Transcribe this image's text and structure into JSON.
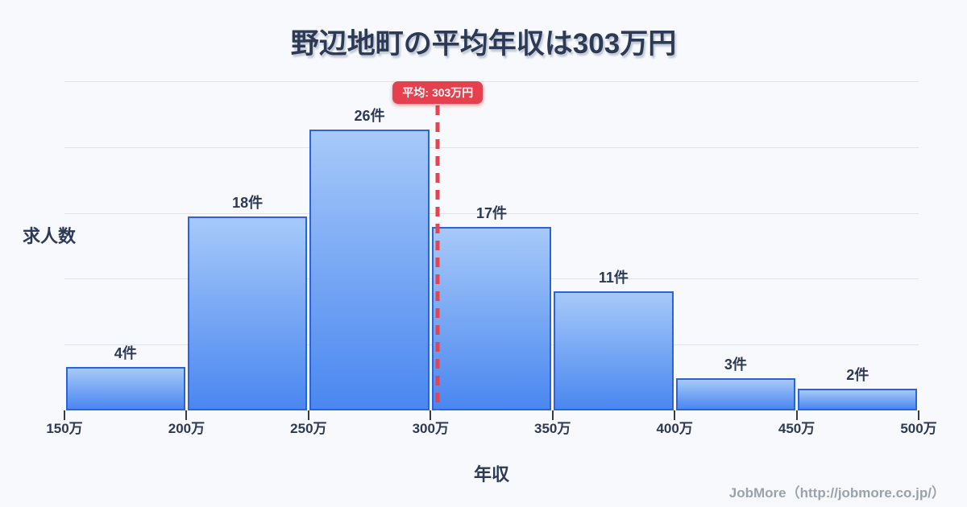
{
  "title": {
    "text": "野辺地町の平均年収は303万円"
  },
  "axis": {
    "x_label": "年収",
    "y_label": "求人数"
  },
  "footer": {
    "text": "JobMore（http://jobmore.co.jp/）"
  },
  "chart_data": {
    "type": "bar",
    "subtype": "histogram",
    "title": "野辺地町の平均年収は303万円",
    "xlabel": "年収",
    "ylabel": "求人数",
    "bin_edge_labels": [
      "150万",
      "200万",
      "250万",
      "300万",
      "350万",
      "400万",
      "450万",
      "500万"
    ],
    "bin_edge_values": [
      150,
      200,
      250,
      300,
      350,
      400,
      450,
      500
    ],
    "values": [
      4,
      18,
      26,
      17,
      11,
      3,
      2
    ],
    "bar_labels": [
      "4件",
      "18件",
      "26件",
      "17件",
      "11件",
      "3件",
      "2件"
    ],
    "x_range": [
      150,
      500
    ],
    "ylim": [
      0,
      30.5
    ],
    "grid": "horizontal-faint",
    "gridline_count": 5,
    "legend": "none",
    "mean": {
      "value": 303,
      "label": "平均: 303万円",
      "line_style": "dashed"
    },
    "colors": {
      "background": "#f7f9fc",
      "bar_border": "#2b63dc",
      "bar_gradient_top": "#a6c9f8",
      "bar_gradient_bottom": "#4a87f0",
      "mean_red": "#e5404d",
      "text_dark": "#2c3a55",
      "gridline": "#dfe3ee",
      "tick": "#333b49",
      "footer_gray": "#9aa2ae"
    }
  }
}
